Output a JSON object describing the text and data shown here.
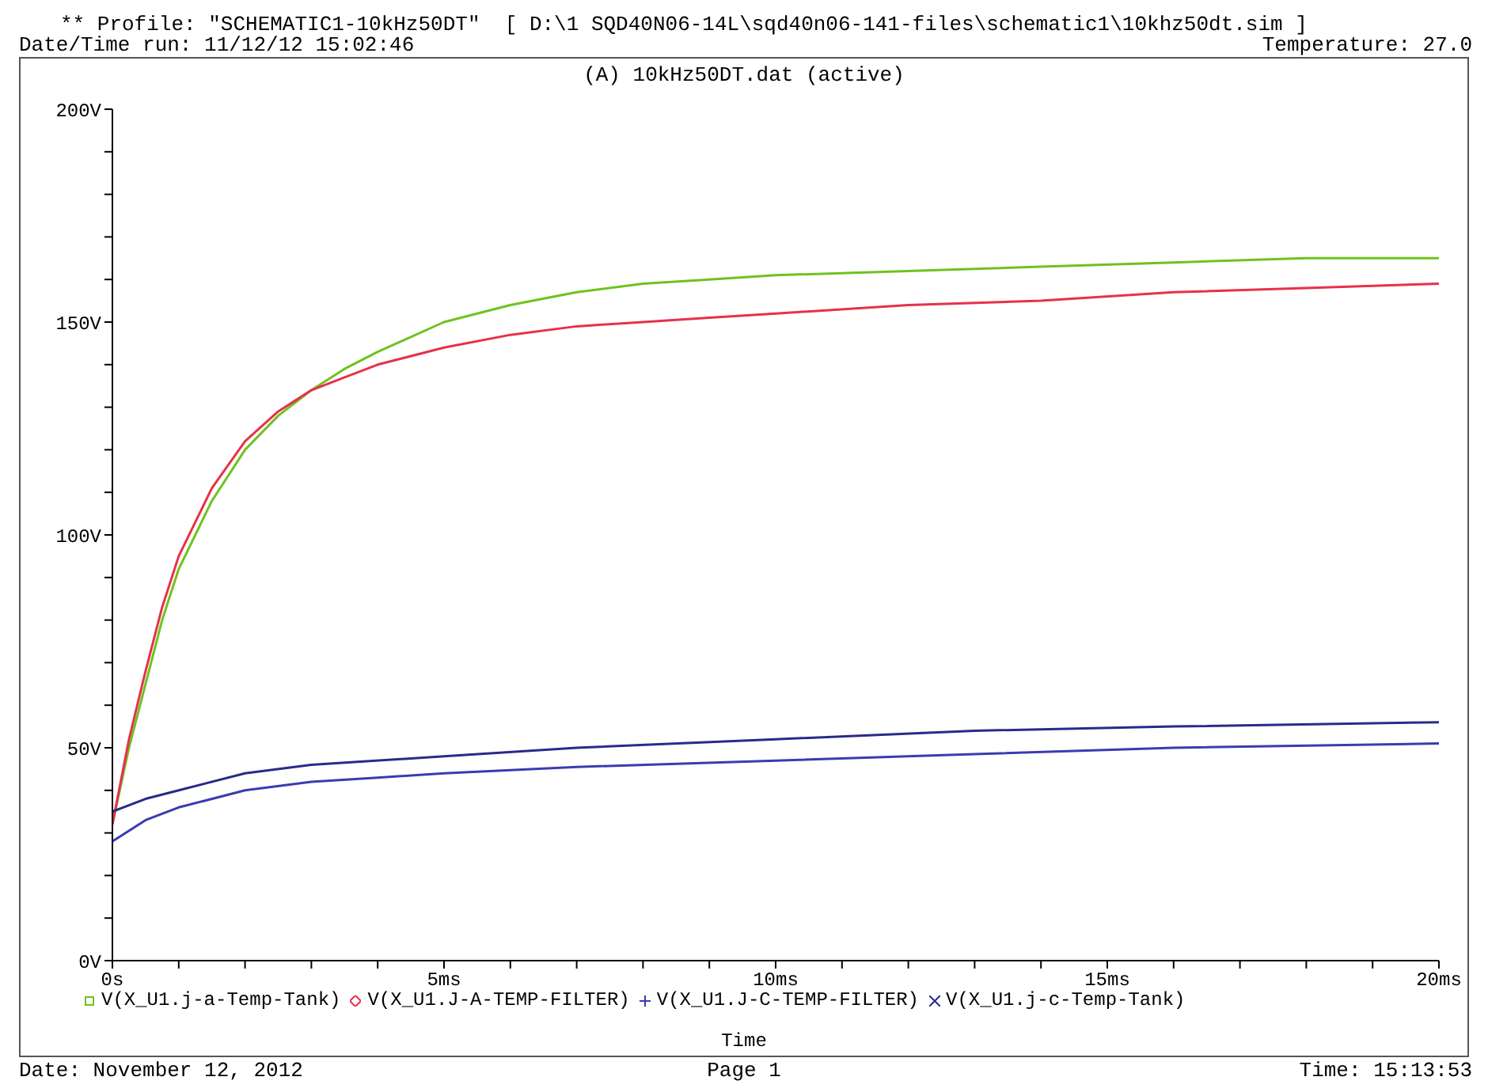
{
  "chart_data": {
    "type": "line",
    "title": "(A) 10kHz50DT.dat (active)",
    "xlabel": "Time",
    "annotations": [
      "** Profile: \"SCHEMATIC1-10kHz50DT\"  [ D:\\1 SQD40N06-14L\\sqd40n06-141-files\\schematic1\\10khz50dt.sim ]",
      "Date/Time run: 11/12/12 15:02:46",
      "Temperature: 27.0",
      "Date: November 12, 2012",
      "Page 1",
      "Time: 15:13:53"
    ],
    "series": [
      {
        "name": "V(X_U1.j-a-Temp-Tank)",
        "color": "#6fc21f",
        "x": [
          0,
          0.25,
          0.5,
          0.75,
          1,
          1.5,
          2,
          2.5,
          3,
          3.5,
          4,
          5,
          6,
          7,
          8,
          9,
          10,
          12,
          14,
          16,
          18,
          20
        ],
        "values": [
          32,
          50,
          65,
          80,
          92,
          108,
          120,
          128,
          134,
          139,
          143,
          150,
          154,
          157,
          159,
          160,
          161,
          162,
          163,
          164,
          165,
          165
        ]
      },
      {
        "name": "V(X_U1.J-A-TEMP-FILTER)",
        "color": "#e8304a",
        "x": [
          0,
          0.25,
          0.5,
          0.75,
          1,
          1.5,
          2,
          2.5,
          3,
          3.5,
          4,
          5,
          6,
          7,
          8,
          9,
          10,
          12,
          14,
          16,
          18,
          20
        ],
        "values": [
          32,
          52,
          68,
          83,
          95,
          111,
          122,
          129,
          134,
          137,
          140,
          144,
          147,
          149,
          150,
          151,
          152,
          154,
          155,
          157,
          158,
          159
        ]
      },
      {
        "name": "V(X_U1.J-C-TEMP-FILTER)",
        "color": "#3b3bb0",
        "x": [
          0,
          0.5,
          1,
          2,
          3,
          4,
          5,
          7,
          10,
          13,
          16,
          20
        ],
        "values": [
          28,
          33,
          36,
          40,
          42,
          43,
          44,
          45.5,
          47,
          48.5,
          50,
          51
        ]
      },
      {
        "name": "V(X_U1.j-c-Temp-Tank)",
        "color": "#2a2a8a",
        "x": [
          0,
          0.5,
          1,
          2,
          3,
          5,
          7,
          10,
          13,
          16,
          20
        ],
        "values": [
          35,
          38,
          40,
          44,
          46,
          48,
          50,
          52,
          54,
          55,
          56
        ]
      }
    ],
    "xlim": [
      0,
      20
    ],
    "xticks": [
      {
        "value": 0,
        "label": "0s"
      },
      {
        "value": 1,
        "label": null
      },
      {
        "value": 2,
        "label": null
      },
      {
        "value": 3,
        "label": null
      },
      {
        "value": 4,
        "label": null
      },
      {
        "value": 5,
        "label": "5ms"
      },
      {
        "value": 6,
        "label": null
      },
      {
        "value": 7,
        "label": null
      },
      {
        "value": 8,
        "label": null
      },
      {
        "value": 9,
        "label": null
      },
      {
        "value": 10,
        "label": "10ms"
      },
      {
        "value": 11,
        "label": null
      },
      {
        "value": 12,
        "label": null
      },
      {
        "value": 13,
        "label": null
      },
      {
        "value": 14,
        "label": null
      },
      {
        "value": 15,
        "label": "15ms"
      },
      {
        "value": 16,
        "label": null
      },
      {
        "value": 17,
        "label": null
      },
      {
        "value": 18,
        "label": null
      },
      {
        "value": 19,
        "label": null
      },
      {
        "value": 20,
        "label": "20ms"
      }
    ],
    "ylim": [
      0,
      200
    ],
    "yticks": [
      {
        "value": 0,
        "label": "0V"
      },
      {
        "value": 10,
        "label": null
      },
      {
        "value": 20,
        "label": null
      },
      {
        "value": 30,
        "label": null
      },
      {
        "value": 40,
        "label": null
      },
      {
        "value": 50,
        "label": "50V"
      },
      {
        "value": 60,
        "label": null
      },
      {
        "value": 70,
        "label": null
      },
      {
        "value": 80,
        "label": null
      },
      {
        "value": 90,
        "label": null
      },
      {
        "value": 100,
        "label": "100V"
      },
      {
        "value": 110,
        "label": null
      },
      {
        "value": 120,
        "label": null
      },
      {
        "value": 130,
        "label": null
      },
      {
        "value": 140,
        "label": null
      },
      {
        "value": 150,
        "label": "150V"
      },
      {
        "value": 160,
        "label": null
      },
      {
        "value": 170,
        "label": null
      },
      {
        "value": 180,
        "label": null
      },
      {
        "value": 190,
        "label": null
      },
      {
        "value": 200,
        "label": "200V"
      }
    ],
    "grid": false,
    "legend": "bottom",
    "marker": "none",
    "line_style": "solid"
  }
}
